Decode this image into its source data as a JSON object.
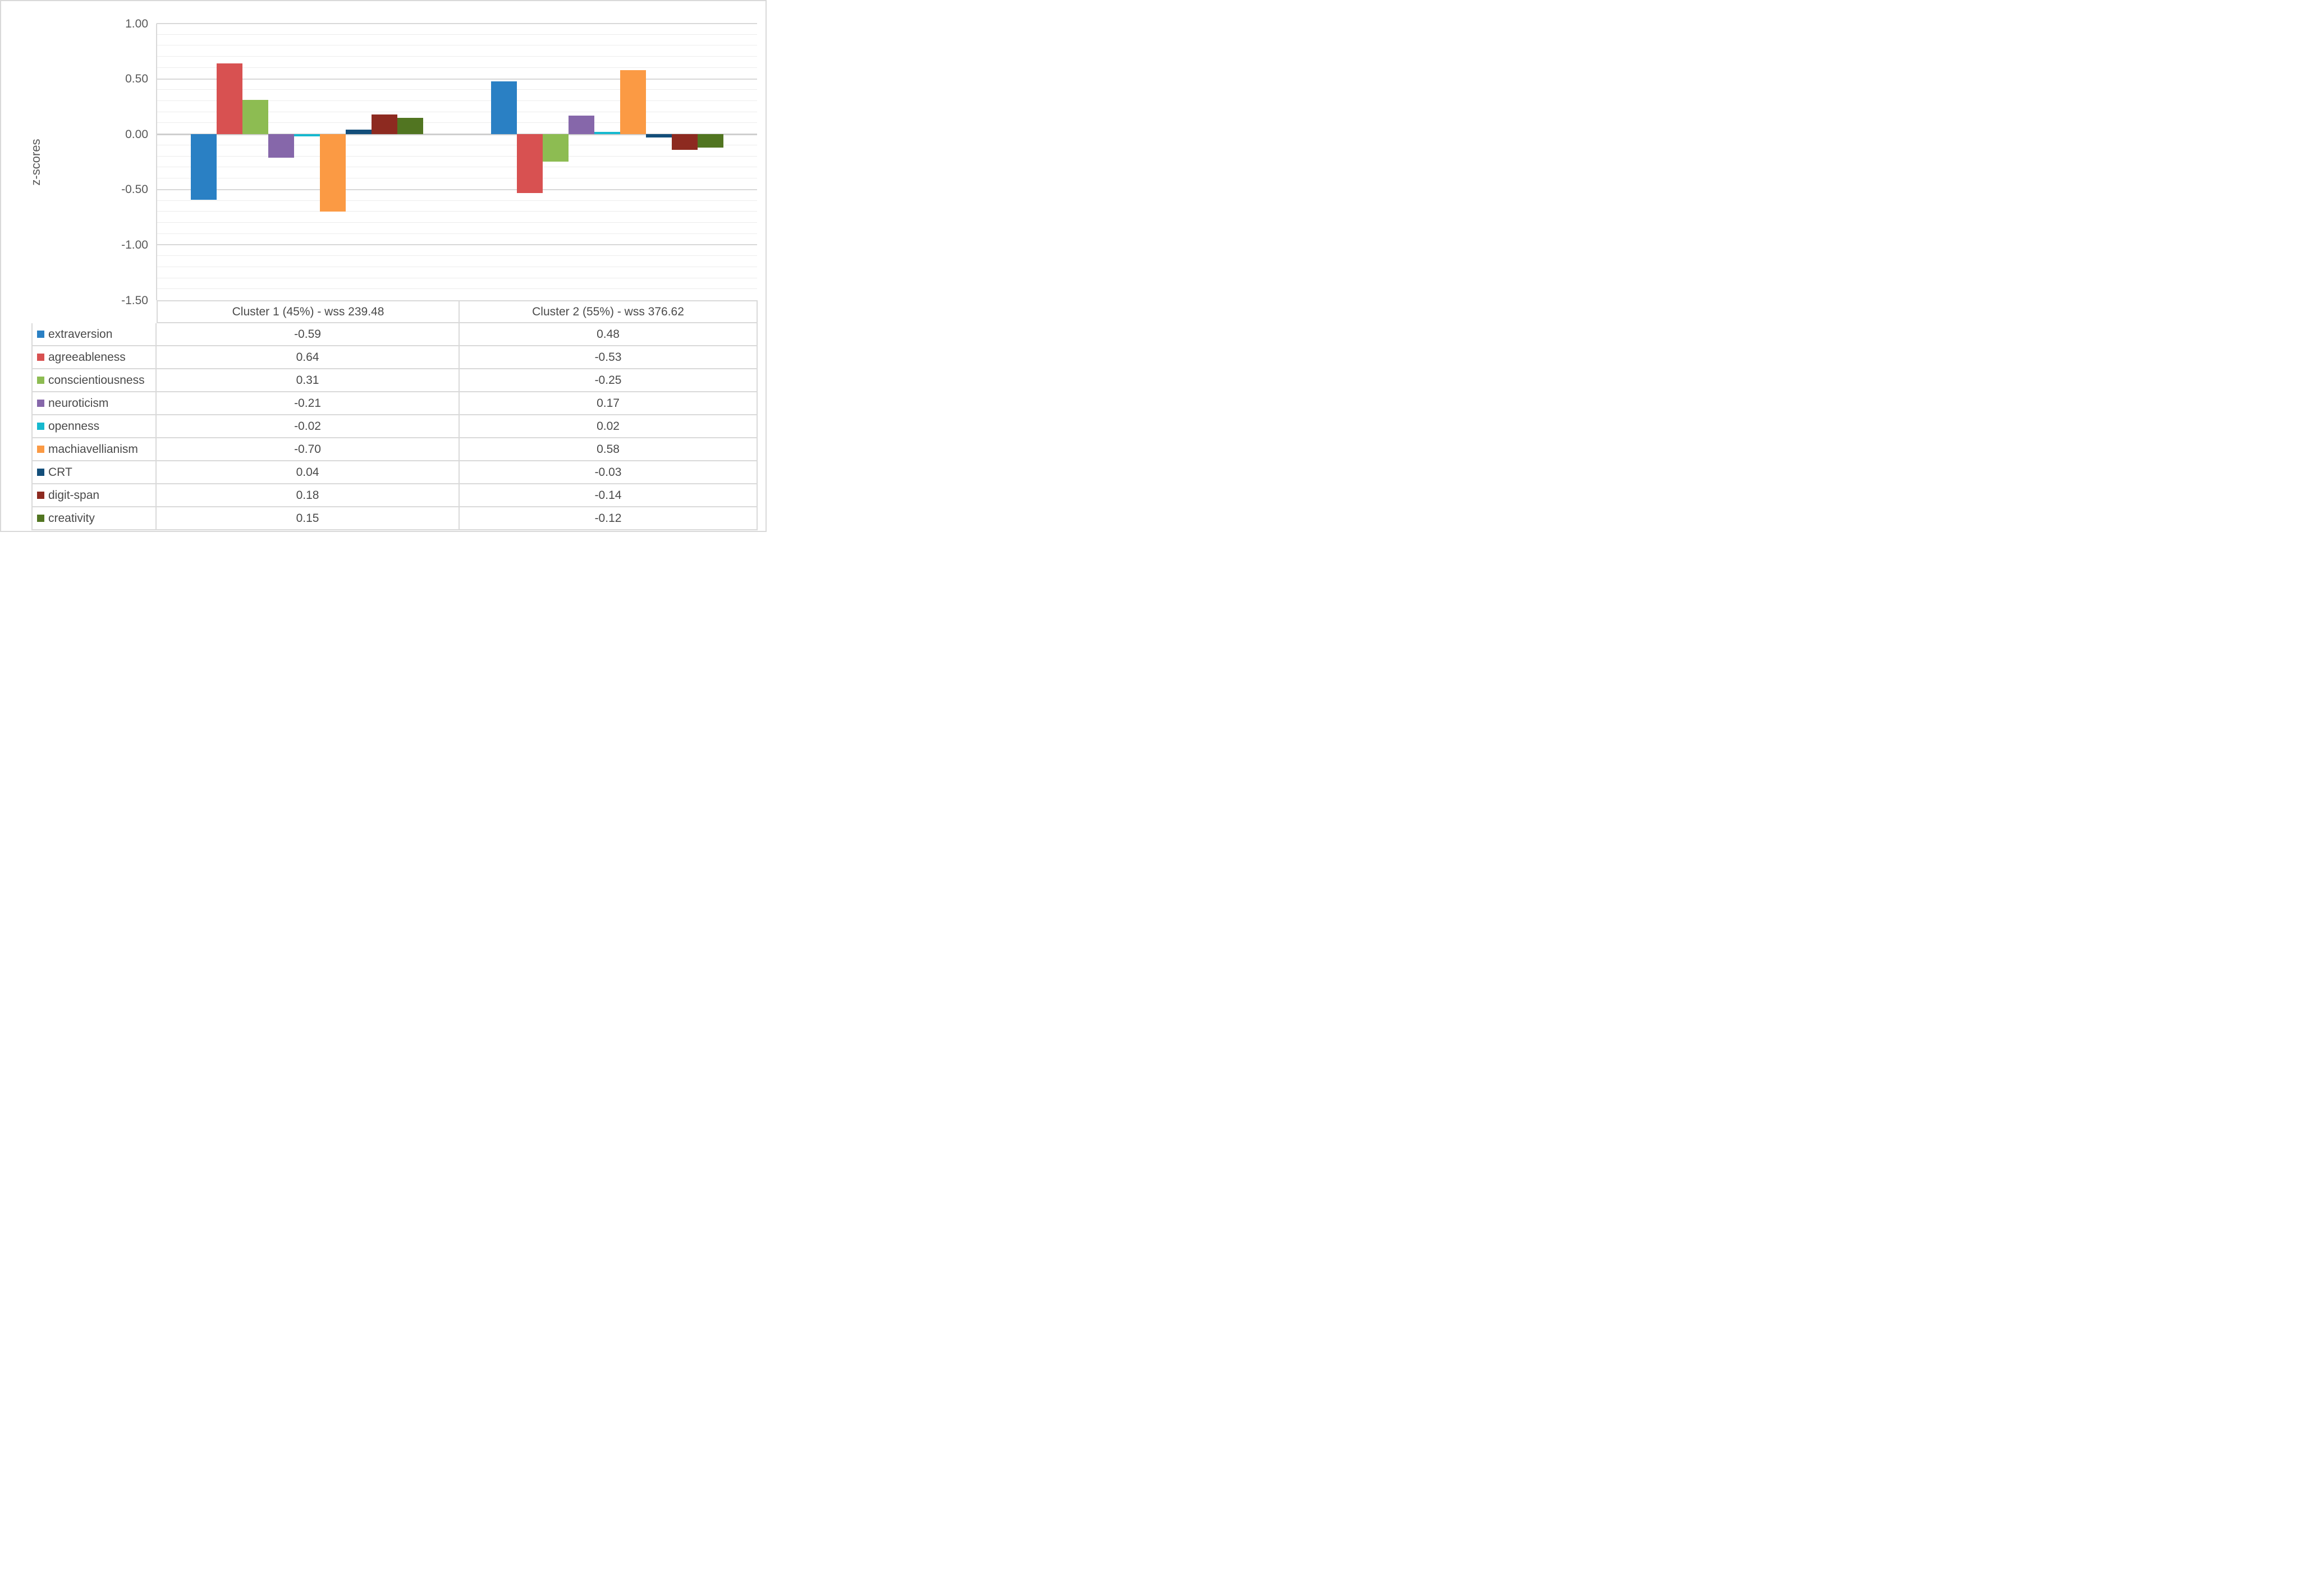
{
  "chart": {
    "y_axis_title": "z-scores",
    "y_ticks": [
      "1.00",
      "0.50",
      "0.00",
      "-0.50",
      "-1.00",
      "-1.50"
    ]
  },
  "table": {
    "columns": [
      "Cluster 1 (45%) - wss 239.48",
      "Cluster 2 (55%) - wss 376.62"
    ]
  },
  "chart_data": {
    "type": "bar",
    "categories": [
      "Cluster 1 (45%) - wss 239.48",
      "Cluster 2 (55%) - wss 376.62"
    ],
    "series": [
      {
        "name": "extraversion",
        "color": "#2A80C4",
        "values": [
          -0.59,
          0.48
        ]
      },
      {
        "name": "agreeableness",
        "color": "#D85151",
        "values": [
          0.64,
          -0.53
        ]
      },
      {
        "name": "conscientiousness",
        "color": "#8DBC52",
        "values": [
          0.31,
          -0.25
        ]
      },
      {
        "name": "neuroticism",
        "color": "#8667AA",
        "values": [
          -0.21,
          0.17
        ]
      },
      {
        "name": "openness",
        "color": "#16B9CF",
        "values": [
          -0.02,
          0.02
        ]
      },
      {
        "name": "machiavellianism",
        "color": "#FB9A44",
        "values": [
          -0.7,
          0.58
        ]
      },
      {
        "name": "CRT",
        "color": "#134E7A",
        "values": [
          0.04,
          -0.03
        ]
      },
      {
        "name": "digit-span",
        "color": "#8D2A20",
        "values": [
          0.18,
          -0.14
        ]
      },
      {
        "name": "creativity",
        "color": "#517521",
        "values": [
          0.15,
          -0.12
        ]
      }
    ],
    "title": "",
    "xlabel": "",
    "ylabel": "z-scores",
    "ylim": [
      -1.5,
      1.0
    ],
    "major_tick_step": 0.5,
    "minor_grid_step": 0.1,
    "grid": "horizontal major+minor",
    "legend_position": "table-left-column"
  }
}
